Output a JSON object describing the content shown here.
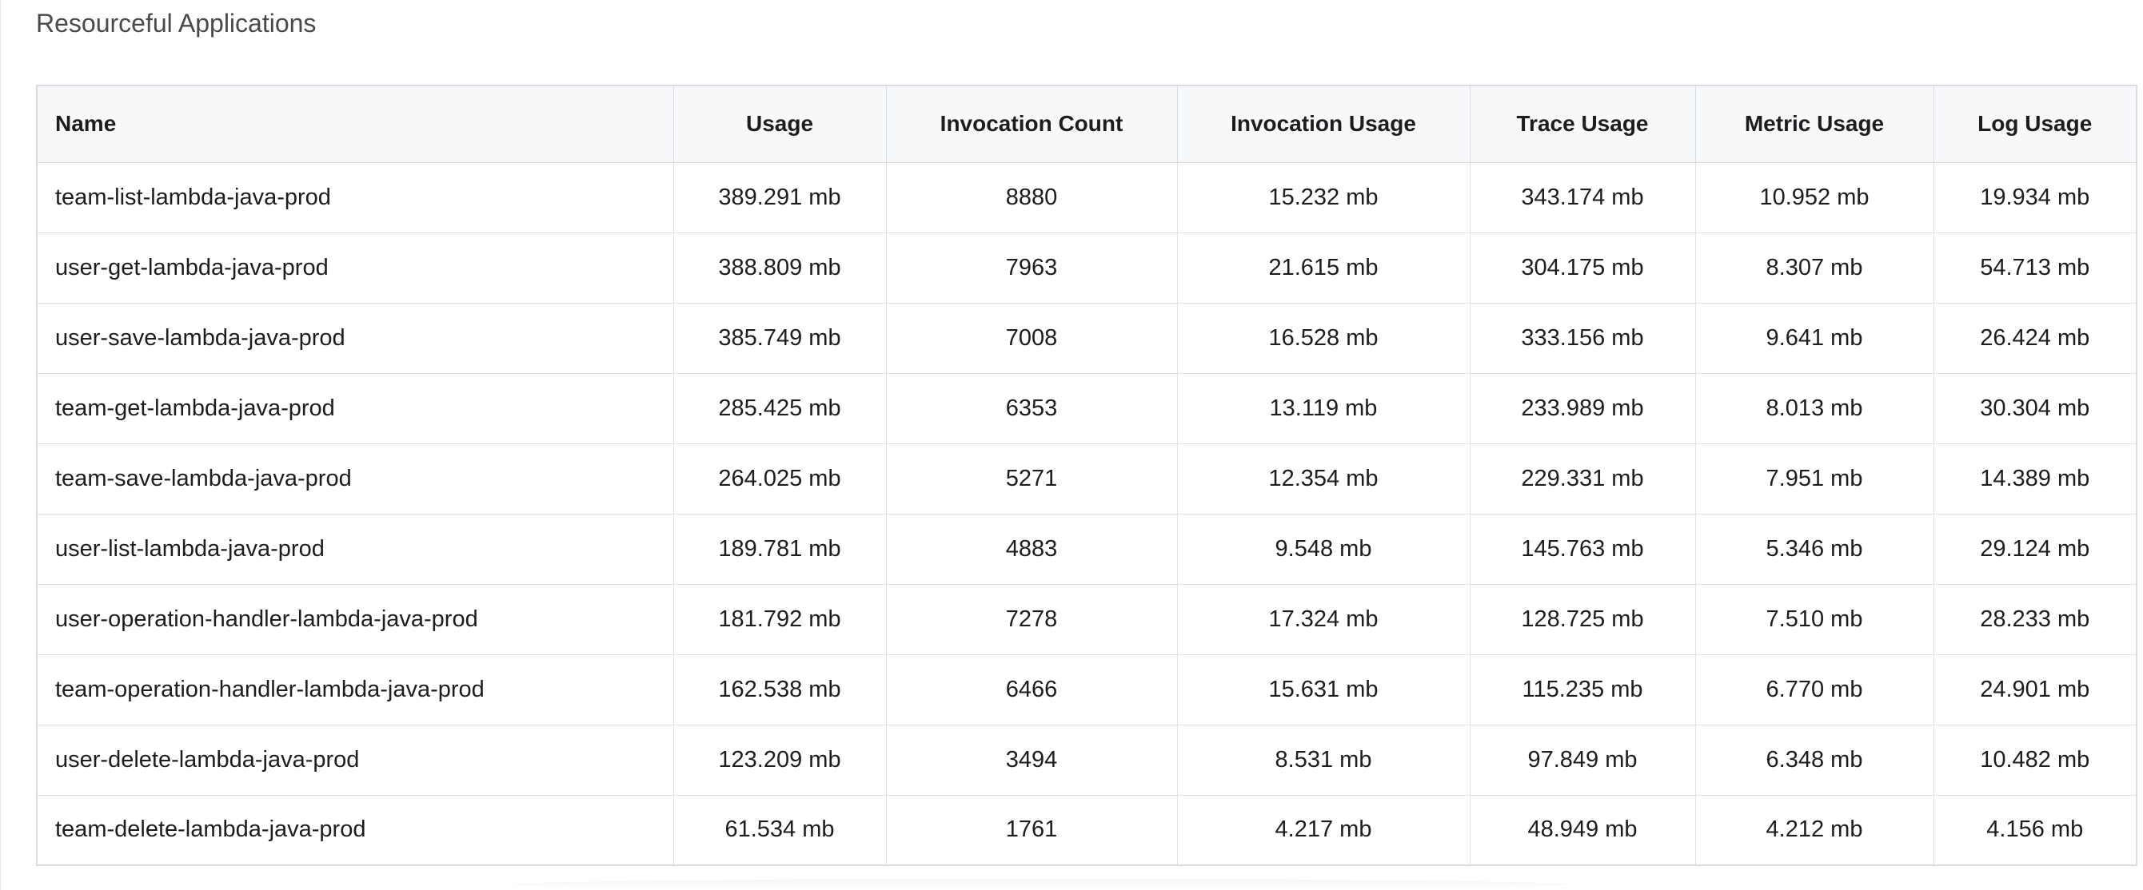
{
  "section": {
    "title": "Resourceful Applications"
  },
  "table": {
    "headers": {
      "name": "Name",
      "usage": "Usage",
      "invocation_count": "Invocation Count",
      "invocation_usage": "Invocation Usage",
      "trace_usage": "Trace Usage",
      "metric_usage": "Metric Usage",
      "log_usage": "Log Usage"
    },
    "rows": [
      {
        "name": "team-list-lambda-java-prod",
        "usage": "389.291 mb",
        "invocation_count": "8880",
        "invocation_usage": "15.232 mb",
        "trace_usage": "343.174 mb",
        "metric_usage": "10.952 mb",
        "log_usage": "19.934 mb"
      },
      {
        "name": "user-get-lambda-java-prod",
        "usage": "388.809 mb",
        "invocation_count": "7963",
        "invocation_usage": "21.615 mb",
        "trace_usage": "304.175 mb",
        "metric_usage": "8.307 mb",
        "log_usage": "54.713 mb"
      },
      {
        "name": "user-save-lambda-java-prod",
        "usage": "385.749 mb",
        "invocation_count": "7008",
        "invocation_usage": "16.528 mb",
        "trace_usage": "333.156 mb",
        "metric_usage": "9.641 mb",
        "log_usage": "26.424 mb"
      },
      {
        "name": "team-get-lambda-java-prod",
        "usage": "285.425 mb",
        "invocation_count": "6353",
        "invocation_usage": "13.119 mb",
        "trace_usage": "233.989 mb",
        "metric_usage": "8.013 mb",
        "log_usage": "30.304 mb"
      },
      {
        "name": "team-save-lambda-java-prod",
        "usage": "264.025 mb",
        "invocation_count": "5271",
        "invocation_usage": "12.354 mb",
        "trace_usage": "229.331 mb",
        "metric_usage": "7.951 mb",
        "log_usage": "14.389 mb"
      },
      {
        "name": "user-list-lambda-java-prod",
        "usage": "189.781 mb",
        "invocation_count": "4883",
        "invocation_usage": "9.548 mb",
        "trace_usage": "145.763 mb",
        "metric_usage": "5.346 mb",
        "log_usage": "29.124 mb"
      },
      {
        "name": "user-operation-handler-lambda-java-prod",
        "usage": "181.792 mb",
        "invocation_count": "7278",
        "invocation_usage": "17.324 mb",
        "trace_usage": "128.725 mb",
        "metric_usage": "7.510 mb",
        "log_usage": "28.233 mb"
      },
      {
        "name": "team-operation-handler-lambda-java-prod",
        "usage": "162.538 mb",
        "invocation_count": "6466",
        "invocation_usage": "15.631 mb",
        "trace_usage": "115.235 mb",
        "metric_usage": "6.770 mb",
        "log_usage": "24.901 mb"
      },
      {
        "name": "user-delete-lambda-java-prod",
        "usage": "123.209 mb",
        "invocation_count": "3494",
        "invocation_usage": "8.531 mb",
        "trace_usage": "97.849 mb",
        "metric_usage": "6.348 mb",
        "log_usage": "10.482 mb"
      },
      {
        "name": "team-delete-lambda-java-prod",
        "usage": "61.534 mb",
        "invocation_count": "1761",
        "invocation_usage": "4.217 mb",
        "trace_usage": "48.949 mb",
        "metric_usage": "4.212 mb",
        "log_usage": "4.156 mb"
      }
    ]
  }
}
